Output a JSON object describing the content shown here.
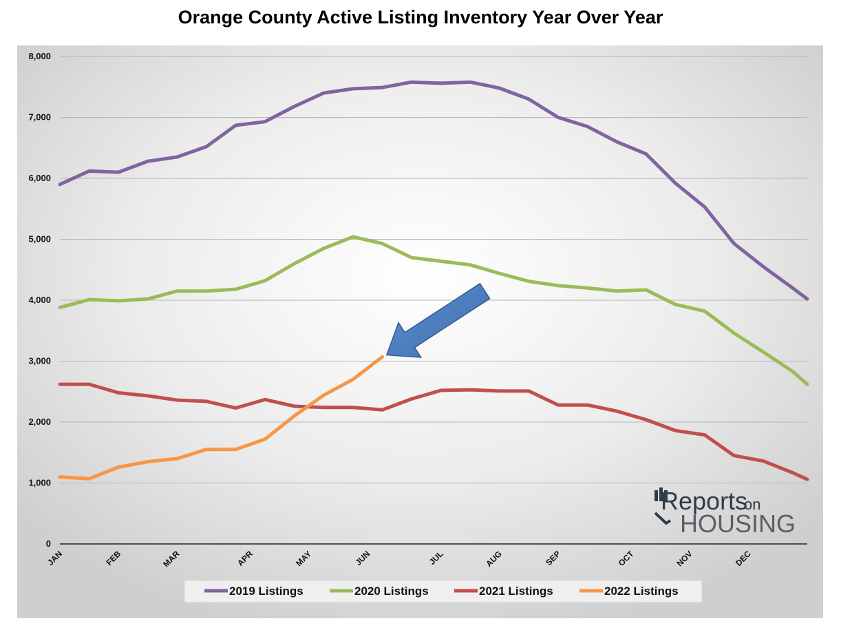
{
  "chart_data": {
    "type": "line",
    "title": "Orange County Active Listing Inventory Year Over Year",
    "xlabel": "",
    "ylabel": "",
    "ylim": [
      0,
      8000
    ],
    "y_ticks": [
      "0",
      "1,000",
      "2,000",
      "3,000",
      "4,000",
      "5,000",
      "6,000",
      "7,000",
      "8,000"
    ],
    "x_tick_labels": [
      {
        "label": "JAN",
        "week": 0
      },
      {
        "label": "FEB",
        "week": 4
      },
      {
        "label": "MAR",
        "week": 8
      },
      {
        "label": "APR",
        "week": 13
      },
      {
        "label": "MAY",
        "week": 17
      },
      {
        "label": "JUN",
        "week": 21
      },
      {
        "label": "JUL",
        "week": 26
      },
      {
        "label": "AUG",
        "week": 30
      },
      {
        "label": "SEP",
        "week": 34
      },
      {
        "label": "OCT",
        "week": 39
      },
      {
        "label": "NOV",
        "week": 43
      },
      {
        "label": "DEC",
        "week": 47
      }
    ],
    "x_max_week": 51,
    "grid": true,
    "legend_position": "bottom",
    "series": [
      {
        "name": "2019 Listings",
        "color": "#8064a2",
        "weeks": [
          0,
          2,
          4,
          6,
          8,
          10,
          12,
          14,
          16,
          18,
          20,
          22,
          24,
          26,
          28,
          30,
          32,
          34,
          36,
          38,
          40,
          42,
          44,
          46,
          48,
          50,
          51
        ],
        "values": [
          5900,
          6120,
          6100,
          6280,
          6350,
          6520,
          6870,
          6930,
          7180,
          7400,
          7470,
          7490,
          7580,
          7560,
          7580,
          7480,
          7300,
          7000,
          6850,
          6600,
          6400,
          5920,
          5530,
          4930,
          4550,
          4200,
          4020
        ]
      },
      {
        "name": "2020 Listings",
        "color": "#9bbb59",
        "weeks": [
          0,
          2,
          4,
          6,
          8,
          10,
          12,
          14,
          16,
          18,
          20,
          22,
          24,
          26,
          28,
          30,
          32,
          34,
          36,
          38,
          40,
          42,
          44,
          46,
          48,
          50,
          51
        ],
        "values": [
          3880,
          4010,
          3990,
          4020,
          4150,
          4150,
          4180,
          4320,
          4600,
          4850,
          5040,
          4930,
          4700,
          4640,
          4580,
          4440,
          4310,
          4240,
          4200,
          4150,
          4170,
          3930,
          3820,
          3460,
          3150,
          2830,
          2620
        ]
      },
      {
        "name": "2021 Listings",
        "color": "#c0504d",
        "weeks": [
          0,
          2,
          4,
          6,
          8,
          10,
          12,
          14,
          16,
          18,
          20,
          22,
          24,
          26,
          28,
          30,
          32,
          34,
          36,
          38,
          40,
          42,
          44,
          46,
          48,
          50,
          51
        ],
        "values": [
          2620,
          2620,
          2480,
          2430,
          2360,
          2340,
          2230,
          2370,
          2260,
          2240,
          2240,
          2200,
          2380,
          2520,
          2530,
          2510,
          2510,
          2280,
          2280,
          2180,
          2040,
          1860,
          1790,
          1450,
          1360,
          1170,
          1060
        ]
      },
      {
        "name": "2022 Listings",
        "color": "#f79646",
        "weeks": [
          0,
          2,
          4,
          6,
          8,
          10,
          12,
          14,
          16,
          18,
          20,
          22
        ],
        "values": [
          1100,
          1070,
          1260,
          1350,
          1400,
          1550,
          1550,
          1720,
          2100,
          2440,
          2700,
          3070
        ]
      }
    ],
    "annotations": [
      {
        "type": "arrow",
        "color": "#4f81bd",
        "from_week": 29,
        "from_value": 4150,
        "to_week": 22.3,
        "to_value": 3100
      }
    ]
  },
  "logo": {
    "reports": "Reports",
    "on": "on",
    "housing": "HOUSING"
  }
}
